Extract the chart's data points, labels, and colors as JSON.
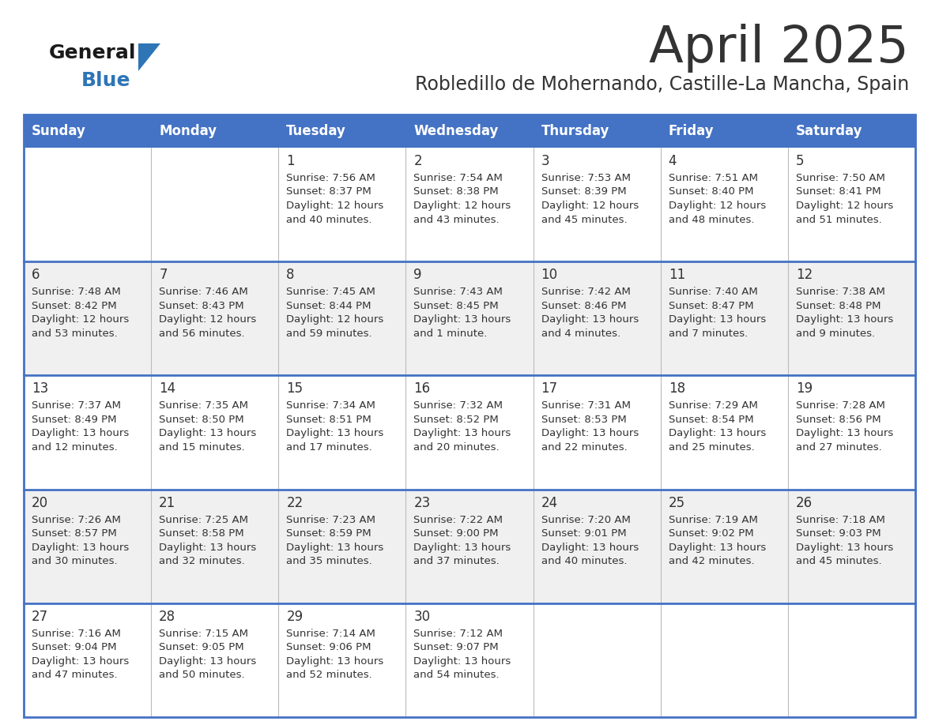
{
  "title": "April 2025",
  "subtitle": "Robledillo de Mohernando, Castille-La Mancha, Spain",
  "header_bg": "#4472C4",
  "header_text_color": "#FFFFFF",
  "weekdays": [
    "Sunday",
    "Monday",
    "Tuesday",
    "Wednesday",
    "Thursday",
    "Friday",
    "Saturday"
  ],
  "cell_bg_row0": "#FFFFFF",
  "cell_bg_row1": "#F0F0F0",
  "cell_bg_row2": "#FFFFFF",
  "cell_bg_row3": "#F0F0F0",
  "cell_bg_row4": "#FFFFFF",
  "cell_border_color": "#4472C4",
  "text_color": "#333333",
  "title_color": "#333333",
  "subtitle_color": "#333333",
  "days": [
    {
      "day": null,
      "sunrise": null,
      "sunset": null,
      "daylight": null
    },
    {
      "day": null,
      "sunrise": null,
      "sunset": null,
      "daylight": null
    },
    {
      "day": 1,
      "sunrise": "7:56 AM",
      "sunset": "8:37 PM",
      "daylight": "12 hours\nand 40 minutes."
    },
    {
      "day": 2,
      "sunrise": "7:54 AM",
      "sunset": "8:38 PM",
      "daylight": "12 hours\nand 43 minutes."
    },
    {
      "day": 3,
      "sunrise": "7:53 AM",
      "sunset": "8:39 PM",
      "daylight": "12 hours\nand 45 minutes."
    },
    {
      "day": 4,
      "sunrise": "7:51 AM",
      "sunset": "8:40 PM",
      "daylight": "12 hours\nand 48 minutes."
    },
    {
      "day": 5,
      "sunrise": "7:50 AM",
      "sunset": "8:41 PM",
      "daylight": "12 hours\nand 51 minutes."
    },
    {
      "day": 6,
      "sunrise": "7:48 AM",
      "sunset": "8:42 PM",
      "daylight": "12 hours\nand 53 minutes."
    },
    {
      "day": 7,
      "sunrise": "7:46 AM",
      "sunset": "8:43 PM",
      "daylight": "12 hours\nand 56 minutes."
    },
    {
      "day": 8,
      "sunrise": "7:45 AM",
      "sunset": "8:44 PM",
      "daylight": "12 hours\nand 59 minutes."
    },
    {
      "day": 9,
      "sunrise": "7:43 AM",
      "sunset": "8:45 PM",
      "daylight": "13 hours\nand 1 minute."
    },
    {
      "day": 10,
      "sunrise": "7:42 AM",
      "sunset": "8:46 PM",
      "daylight": "13 hours\nand 4 minutes."
    },
    {
      "day": 11,
      "sunrise": "7:40 AM",
      "sunset": "8:47 PM",
      "daylight": "13 hours\nand 7 minutes."
    },
    {
      "day": 12,
      "sunrise": "7:38 AM",
      "sunset": "8:48 PM",
      "daylight": "13 hours\nand 9 minutes."
    },
    {
      "day": 13,
      "sunrise": "7:37 AM",
      "sunset": "8:49 PM",
      "daylight": "13 hours\nand 12 minutes."
    },
    {
      "day": 14,
      "sunrise": "7:35 AM",
      "sunset": "8:50 PM",
      "daylight": "13 hours\nand 15 minutes."
    },
    {
      "day": 15,
      "sunrise": "7:34 AM",
      "sunset": "8:51 PM",
      "daylight": "13 hours\nand 17 minutes."
    },
    {
      "day": 16,
      "sunrise": "7:32 AM",
      "sunset": "8:52 PM",
      "daylight": "13 hours\nand 20 minutes."
    },
    {
      "day": 17,
      "sunrise": "7:31 AM",
      "sunset": "8:53 PM",
      "daylight": "13 hours\nand 22 minutes."
    },
    {
      "day": 18,
      "sunrise": "7:29 AM",
      "sunset": "8:54 PM",
      "daylight": "13 hours\nand 25 minutes."
    },
    {
      "day": 19,
      "sunrise": "7:28 AM",
      "sunset": "8:56 PM",
      "daylight": "13 hours\nand 27 minutes."
    },
    {
      "day": 20,
      "sunrise": "7:26 AM",
      "sunset": "8:57 PM",
      "daylight": "13 hours\nand 30 minutes."
    },
    {
      "day": 21,
      "sunrise": "7:25 AM",
      "sunset": "8:58 PM",
      "daylight": "13 hours\nand 32 minutes."
    },
    {
      "day": 22,
      "sunrise": "7:23 AM",
      "sunset": "8:59 PM",
      "daylight": "13 hours\nand 35 minutes."
    },
    {
      "day": 23,
      "sunrise": "7:22 AM",
      "sunset": "9:00 PM",
      "daylight": "13 hours\nand 37 minutes."
    },
    {
      "day": 24,
      "sunrise": "7:20 AM",
      "sunset": "9:01 PM",
      "daylight": "13 hours\nand 40 minutes."
    },
    {
      "day": 25,
      "sunrise": "7:19 AM",
      "sunset": "9:02 PM",
      "daylight": "13 hours\nand 42 minutes."
    },
    {
      "day": 26,
      "sunrise": "7:18 AM",
      "sunset": "9:03 PM",
      "daylight": "13 hours\nand 45 minutes."
    },
    {
      "day": 27,
      "sunrise": "7:16 AM",
      "sunset": "9:04 PM",
      "daylight": "13 hours\nand 47 minutes."
    },
    {
      "day": 28,
      "sunrise": "7:15 AM",
      "sunset": "9:05 PM",
      "daylight": "13 hours\nand 50 minutes."
    },
    {
      "day": 29,
      "sunrise": "7:14 AM",
      "sunset": "9:06 PM",
      "daylight": "13 hours\nand 52 minutes."
    },
    {
      "day": 30,
      "sunrise": "7:12 AM",
      "sunset": "9:07 PM",
      "daylight": "13 hours\nand 54 minutes."
    },
    {
      "day": null,
      "sunrise": null,
      "sunset": null,
      "daylight": null
    },
    {
      "day": null,
      "sunrise": null,
      "sunset": null,
      "daylight": null
    },
    {
      "day": null,
      "sunrise": null,
      "sunset": null,
      "daylight": null
    }
  ],
  "logo_text_general": "General",
  "logo_text_blue": "Blue",
  "logo_color_general": "#1a1a1a",
  "logo_color_blue": "#2E75B6",
  "logo_triangle_color": "#2E75B6"
}
